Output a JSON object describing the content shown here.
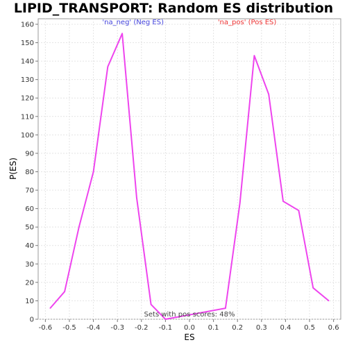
{
  "chart_data": {
    "type": "line",
    "title": "LIPID_TRANSPORT: Random ES distribution",
    "xlabel": "ES",
    "ylabel": "P(ES)",
    "xlim": [
      -0.63,
      0.63
    ],
    "ylim": [
      0,
      163
    ],
    "x_ticks": [
      "-0.6",
      "-0.5",
      "-0.4",
      "-0.3",
      "-0.2",
      "-0.1",
      "0.0",
      "0.1",
      "0.2",
      "0.3",
      "0.4",
      "0.5",
      "0.6"
    ],
    "x_tick_values": [
      -0.6,
      -0.5,
      -0.4,
      -0.3,
      -0.2,
      -0.1,
      0.0,
      0.1,
      0.2,
      0.3,
      0.4,
      0.5,
      0.6
    ],
    "y_ticks": [
      "0",
      "10",
      "20",
      "30",
      "40",
      "50",
      "60",
      "70",
      "80",
      "90",
      "100",
      "110",
      "120",
      "130",
      "140",
      "150",
      "160"
    ],
    "y_tick_values": [
      0,
      10,
      20,
      30,
      40,
      50,
      60,
      70,
      80,
      90,
      100,
      110,
      120,
      130,
      140,
      150,
      160
    ],
    "grid": true,
    "series": [
      {
        "color": "#ee44ee",
        "x": [
          -0.58,
          -0.52,
          -0.46,
          -0.4,
          -0.34,
          -0.28,
          -0.22,
          -0.16,
          -0.1,
          0.15,
          0.21,
          0.27,
          0.33,
          0.39,
          0.455,
          0.515,
          0.58
        ],
        "y": [
          6,
          15,
          50,
          80,
          137,
          155,
          66,
          8,
          0,
          6,
          63,
          143,
          122,
          64,
          59,
          17,
          10
        ]
      }
    ],
    "annotations": [
      {
        "text": "'na_neg' (Neg ES)",
        "x": -0.235,
        "y": 160,
        "color": "#4444dd"
      },
      {
        "text": "'na_pos' (Pos ES)",
        "x": 0.24,
        "y": 160,
        "color": "#ee3333"
      },
      {
        "text": "Sets with pos scores: 48%",
        "x": 0.0,
        "y": 1.5,
        "color": "#444444"
      }
    ]
  }
}
